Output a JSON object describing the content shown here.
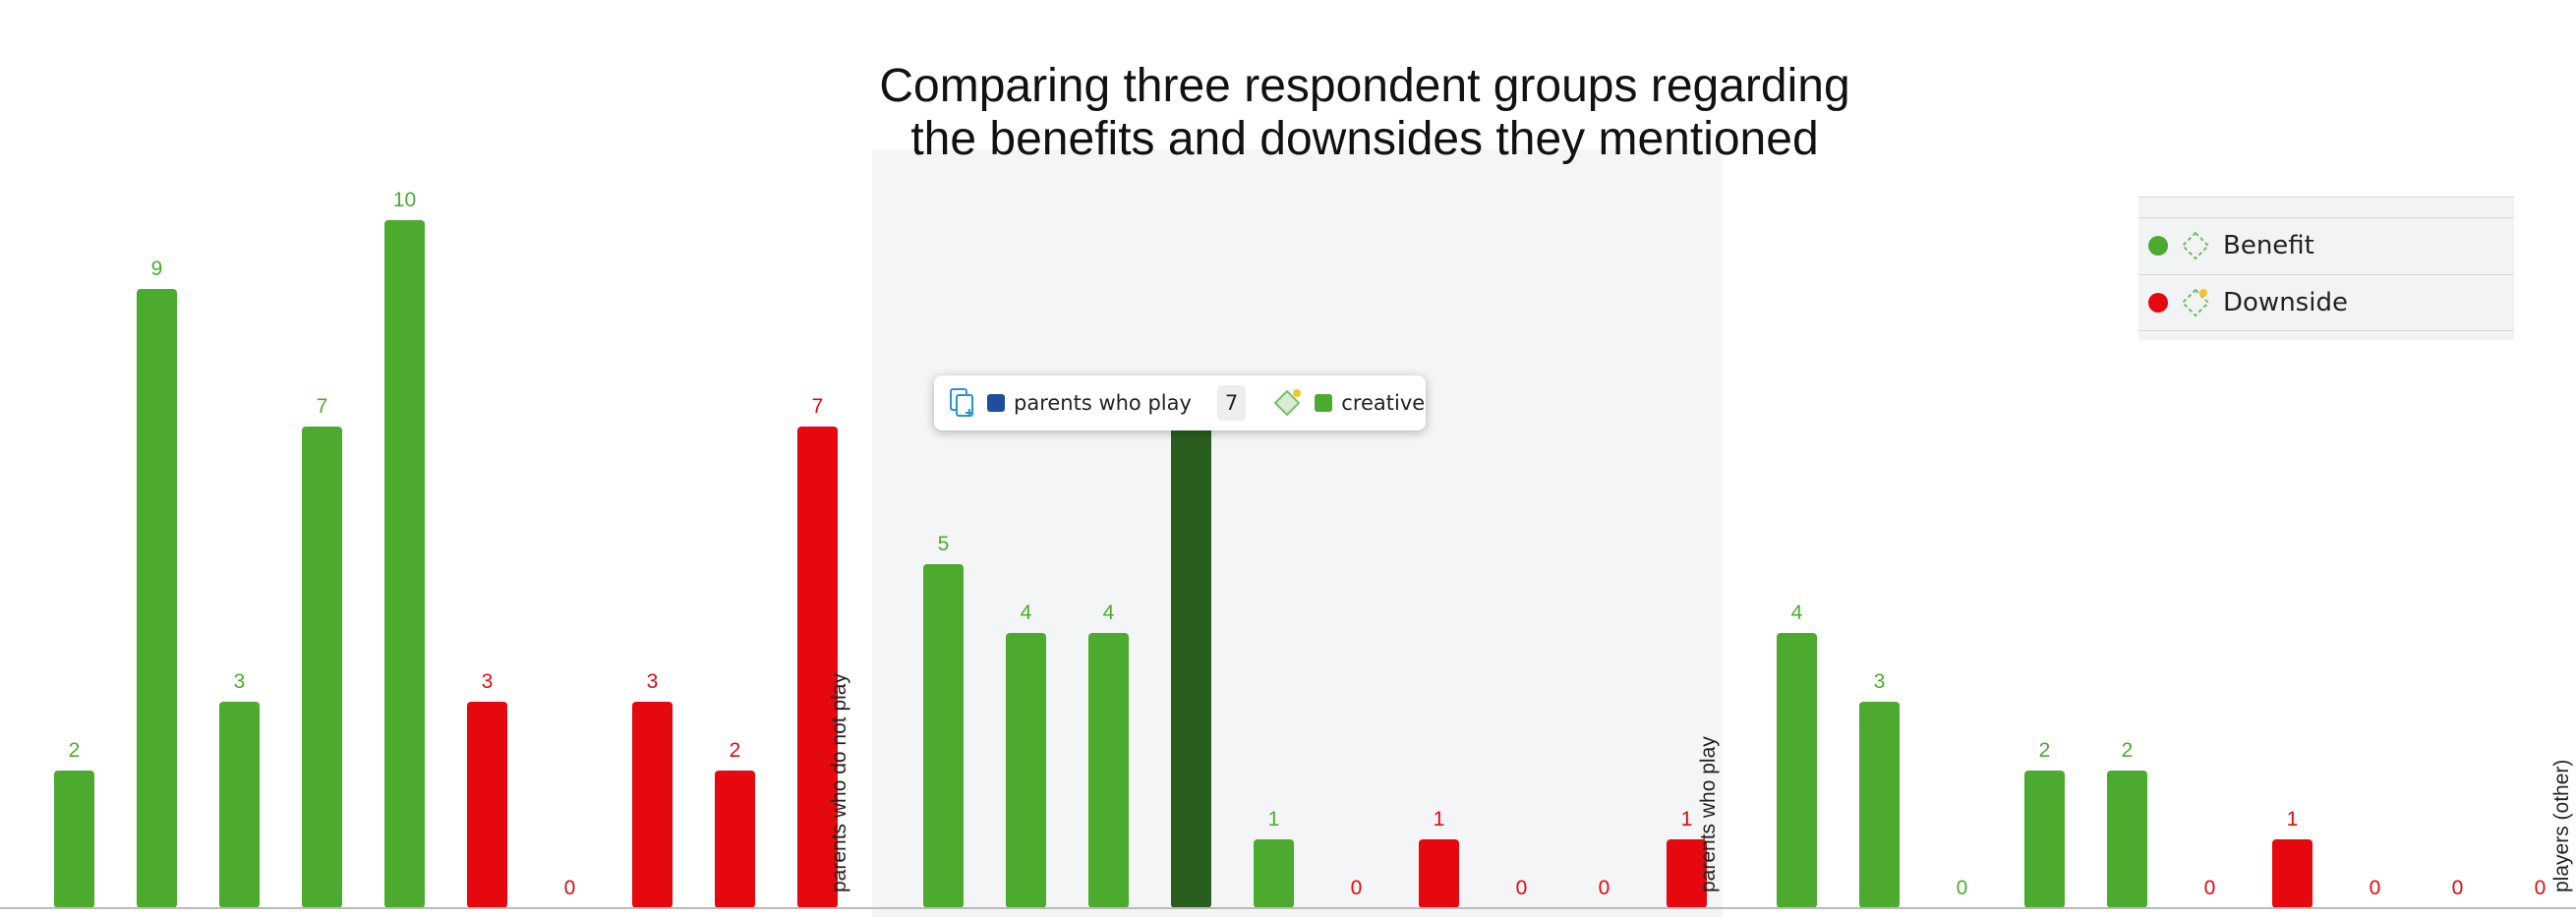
{
  "chart_data": {
    "type": "bar",
    "title": [
      "Comparing three respondent groups regarding",
      "the benefits and downsides they mentioned"
    ],
    "groups": [
      {
        "name": "parents who do not play",
        "values": [
          2,
          9,
          3,
          7,
          10,
          3,
          0,
          3,
          2,
          7
        ],
        "kinds": [
          "Benefit",
          "Benefit",
          "Benefit",
          "Benefit",
          "Benefit",
          "Downside",
          "Downside",
          "Downside",
          "Downside",
          "Downside"
        ]
      },
      {
        "name": "parents who play",
        "values": [
          5,
          4,
          4,
          7,
          1,
          0,
          1,
          0,
          0,
          1
        ],
        "kinds": [
          "Benefit",
          "Benefit",
          "Benefit",
          "Benefit",
          "Benefit",
          "Downside",
          "Downside",
          "Downside",
          "Downside",
          "Downside"
        ]
      },
      {
        "name": "players (other)",
        "values": [
          4,
          3,
          0,
          2,
          2,
          0,
          1,
          0,
          0,
          0
        ],
        "kinds": [
          "Benefit",
          "Benefit",
          "Benefit",
          "Benefit",
          "Benefit",
          "Downside",
          "Downside",
          "Downside",
          "Downside",
          "Downside"
        ]
      }
    ],
    "ylim": [
      0,
      10
    ],
    "grid": false,
    "legend_position": "top-right",
    "highlighted": {
      "group": 1,
      "index": 3,
      "color": "#2a5e1e"
    }
  },
  "legend": {
    "items": [
      {
        "label": "Benefit",
        "color": "#4cab2f"
      },
      {
        "label": "Downside",
        "color": "#e5090f"
      }
    ]
  },
  "tooltip": {
    "document_group": "parents who play",
    "document_color": "#1f4e9a",
    "count": "7",
    "code": "creative",
    "code_color": "#4cab2f"
  },
  "colors": {
    "Benefit": "#4cab2f",
    "Downside": "#e5090f",
    "highlight_panel": "#f4f5f6",
    "axis": "#bbbbbb"
  },
  "icons": {
    "legend_code": "code-diamond-icon",
    "tooltip_document": "document-group-icon"
  }
}
